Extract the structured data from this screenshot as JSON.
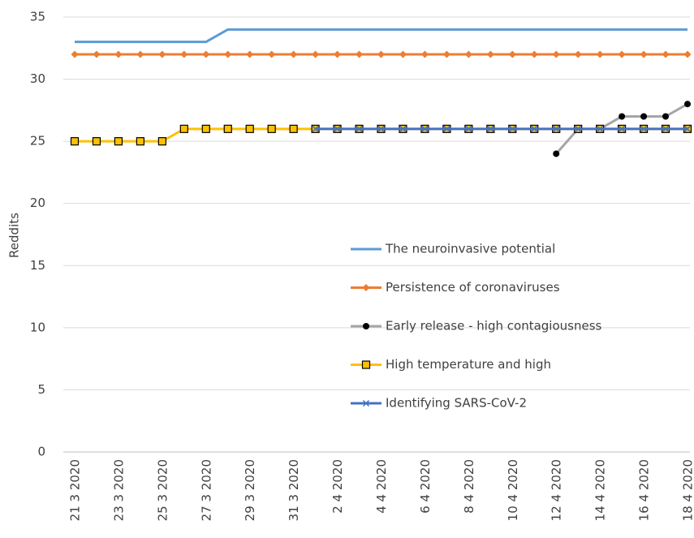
{
  "chart_data": {
    "type": "line",
    "y_label": "Reddits",
    "categories": [
      "21 3 2020",
      null,
      "23 3 2020",
      null,
      "25 3 2020",
      null,
      "27 3 2020",
      null,
      "29 3 2020",
      null,
      "31 3 2020",
      null,
      "2 4 2020",
      null,
      "4 4 2020",
      null,
      "6 4 2020",
      null,
      "8 4 2020",
      null,
      "10 4 2020",
      null,
      "12 4 2020",
      null,
      "14 4 2020",
      null,
      "16 4 2020",
      null,
      "18 4 2020"
    ],
    "series": [
      {
        "name": "The neuroinvasive potential",
        "color": "#5b9bd5",
        "marker": "none",
        "values": [
          33,
          33,
          33,
          33,
          33,
          33,
          33,
          34,
          34,
          34,
          34,
          34,
          34,
          34,
          34,
          34,
          34,
          34,
          34,
          34,
          34,
          34,
          34,
          34,
          34,
          34,
          34,
          34,
          34
        ]
      },
      {
        "name": "Persistence of coronaviruses",
        "color": "#ed7d31",
        "marker": "diamond",
        "values": [
          32,
          32,
          32,
          32,
          32,
          32,
          32,
          32,
          32,
          32,
          32,
          32,
          32,
          32,
          32,
          32,
          32,
          32,
          32,
          32,
          32,
          32,
          32,
          32,
          32,
          32,
          32,
          32,
          32
        ]
      },
      {
        "name": "Early release - high contagiousness",
        "color": "#a5a5a5",
        "marker": "circle",
        "values": [
          null,
          null,
          null,
          null,
          null,
          null,
          null,
          null,
          null,
          null,
          null,
          null,
          null,
          null,
          null,
          null,
          null,
          null,
          null,
          null,
          null,
          null,
          24,
          26,
          26,
          27,
          27,
          27,
          28
        ]
      },
      {
        "name": "High temperature and high",
        "color": "#ffc000",
        "marker": "square",
        "values": [
          25,
          25,
          25,
          25,
          25,
          26,
          26,
          26,
          26,
          26,
          26,
          26,
          26,
          26,
          26,
          26,
          26,
          26,
          26,
          26,
          26,
          26,
          26,
          26,
          26,
          26,
          26,
          26,
          26
        ]
      },
      {
        "name": "Identifying SARS-CoV-2",
        "color": "#4472c4",
        "marker": "x",
        "values": [
          null,
          null,
          null,
          null,
          null,
          null,
          null,
          null,
          null,
          null,
          null,
          26,
          26,
          26,
          26,
          26,
          26,
          26,
          26,
          26,
          26,
          26,
          26,
          26,
          26,
          26,
          26,
          26,
          26
        ]
      }
    ],
    "ylim": [
      0,
      35
    ],
    "yticks": [
      0,
      5,
      10,
      15,
      20,
      25,
      30,
      35
    ],
    "grid": true
  }
}
